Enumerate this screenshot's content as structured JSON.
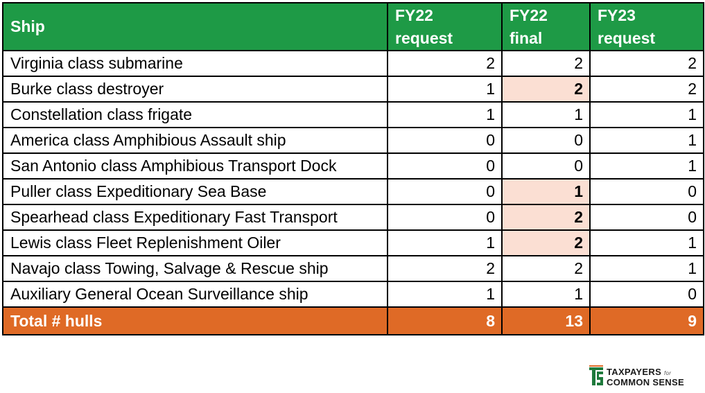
{
  "table": {
    "headers": [
      {
        "line1": "Ship",
        "line2": ""
      },
      {
        "line1": "FY22",
        "line2": "request"
      },
      {
        "line1": "FY22",
        "line2": "final"
      },
      {
        "line1": "FY23",
        "line2": "request"
      }
    ],
    "rows": [
      {
        "ship": "Virginia class submarine",
        "fy22_request": "2",
        "fy22_final": "2",
        "fy23_request": "2",
        "final_highlight": false
      },
      {
        "ship": "Burke class destroyer",
        "fy22_request": "1",
        "fy22_final": "2",
        "fy23_request": "2",
        "final_highlight": true
      },
      {
        "ship": "Constellation class frigate",
        "fy22_request": "1",
        "fy22_final": "1",
        "fy23_request": "1",
        "final_highlight": false
      },
      {
        "ship": "America class Amphibious Assault ship",
        "fy22_request": "0",
        "fy22_final": "0",
        "fy23_request": "1",
        "final_highlight": false
      },
      {
        "ship": "San Antonio class Amphibious Transport Dock",
        "fy22_request": "0",
        "fy22_final": "0",
        "fy23_request": "1",
        "final_highlight": false
      },
      {
        "ship": "Puller class Expeditionary Sea Base",
        "fy22_request": "0",
        "fy22_final": "1",
        "fy23_request": "0",
        "final_highlight": true
      },
      {
        "ship": "Spearhead class Expeditionary Fast Transport",
        "fy22_request": "0",
        "fy22_final": "2",
        "fy23_request": "0",
        "final_highlight": true
      },
      {
        "ship": "Lewis class Fleet Replenishment Oiler",
        "fy22_request": "1",
        "fy22_final": "2",
        "fy23_request": "1",
        "final_highlight": true
      },
      {
        "ship": "Navajo class Towing, Salvage & Rescue ship",
        "fy22_request": "2",
        "fy22_final": "2",
        "fy23_request": "1",
        "final_highlight": false
      },
      {
        "ship": "Auxiliary General Ocean Surveillance ship",
        "fy22_request": "1",
        "fy22_final": "1",
        "fy23_request": "0",
        "final_highlight": false
      }
    ],
    "total": {
      "label": "Total # hulls",
      "fy22_request": "8",
      "fy22_final": "13",
      "fy23_request": "9"
    }
  },
  "logo": {
    "line1": "TAXPAYERS",
    "small": "for",
    "line2": "COMMON SENSE",
    "color": "#1e7a3c",
    "accent": "#df6a26"
  },
  "colors": {
    "header_bg": "#1e9a46",
    "total_bg": "#df6a26",
    "highlight_bg": "#fbdfd3"
  }
}
